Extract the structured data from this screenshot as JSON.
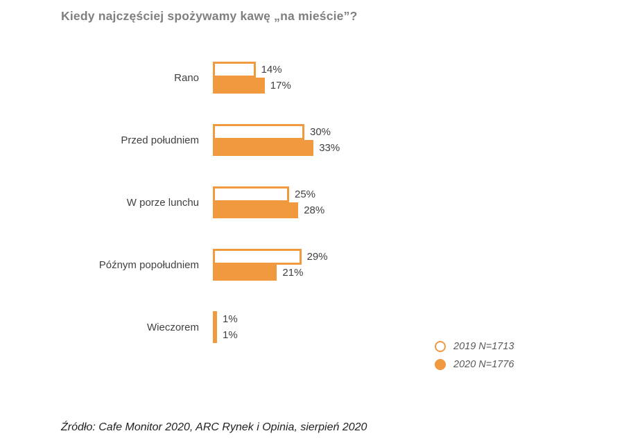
{
  "title": "Kiedy najczęściej spożywamy kawę „na mieście”?",
  "chart_data": {
    "type": "bar",
    "orientation": "horizontal",
    "title": "Kiedy najczęściej spożywamy kawę „na mieście”?",
    "categories": [
      "Rano",
      "Przed południem",
      "W porze lunchu",
      "Późnym popołudniem",
      "Wieczorem"
    ],
    "series": [
      {
        "name": "2019 N=1713",
        "style": "outline",
        "values": [
          14,
          30,
          25,
          29,
          1
        ]
      },
      {
        "name": "2020 N=1776",
        "style": "filled",
        "values": [
          17,
          33,
          28,
          21,
          1
        ]
      }
    ],
    "value_suffix": "%",
    "xlim": [
      0,
      33
    ],
    "grid": false,
    "axis_labels_visible": false,
    "legend_position": "bottom-right"
  },
  "legend": {
    "items": [
      {
        "label": "2019 N=1713",
        "marker": "circle-outline"
      },
      {
        "label": "2020 N=1776",
        "marker": "circle-filled"
      }
    ]
  },
  "source": "Źródło: Cafe Monitor 2020, ARC Rynek i Opinia, sierpień 2020",
  "colors": {
    "accent_orange": "#f0993e",
    "title_gray": "#7f7f7f",
    "label_dark": "#404040",
    "legend_gray": "#595959"
  }
}
